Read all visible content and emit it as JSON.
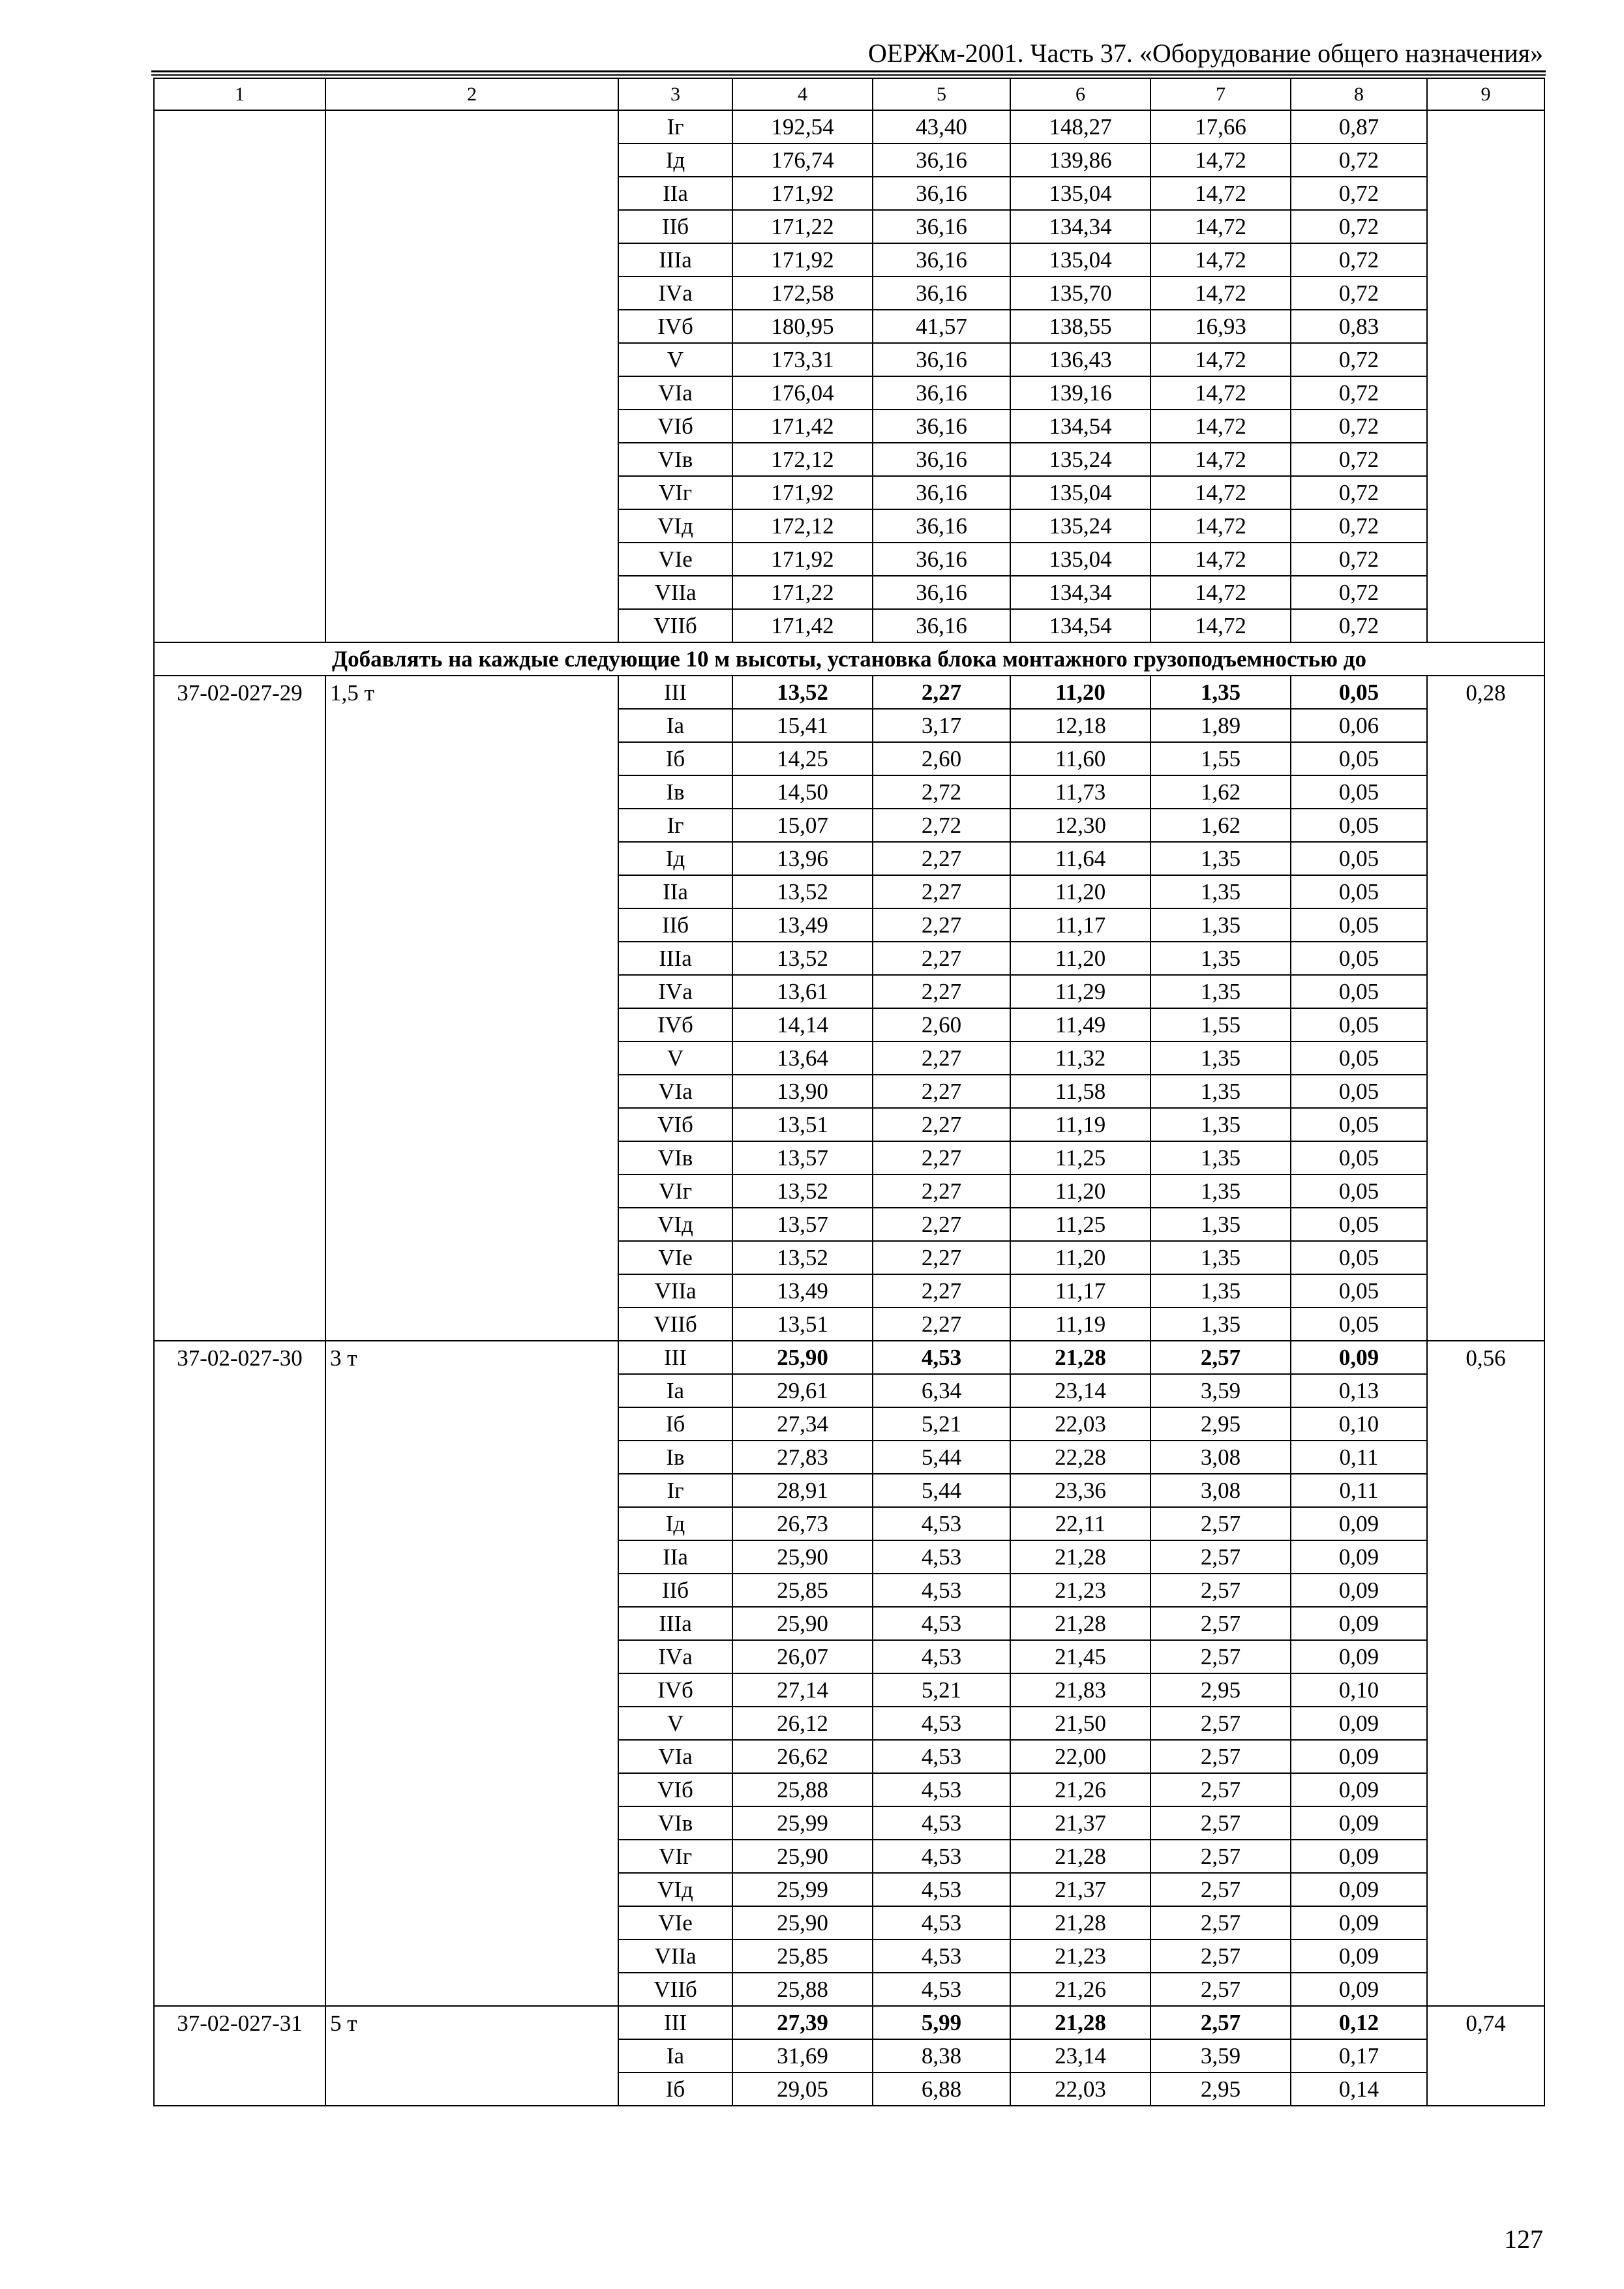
{
  "header": "ОЕРЖм-2001. Часть 37. «Оборудование общего назначения»",
  "page_number": "127",
  "column_numbers": [
    "1",
    "2",
    "3",
    "4",
    "5",
    "6",
    "7",
    "8",
    "9"
  ],
  "section_title": "Добавлять на каждые следующие 10 м высоты, установка блока монтажного грузоподъемностью до",
  "groups": [
    {
      "code": "",
      "capacity": "",
      "col9": "",
      "rows": [
        [
          "Iг",
          "192,54",
          "43,40",
          "148,27",
          "17,66",
          "0,87"
        ],
        [
          "Iд",
          "176,74",
          "36,16",
          "139,86",
          "14,72",
          "0,72"
        ],
        [
          "IIа",
          "171,92",
          "36,16",
          "135,04",
          "14,72",
          "0,72"
        ],
        [
          "IIб",
          "171,22",
          "36,16",
          "134,34",
          "14,72",
          "0,72"
        ],
        [
          "IIIа",
          "171,92",
          "36,16",
          "135,04",
          "14,72",
          "0,72"
        ],
        [
          "IVа",
          "172,58",
          "36,16",
          "135,70",
          "14,72",
          "0,72"
        ],
        [
          "IVб",
          "180,95",
          "41,57",
          "138,55",
          "16,93",
          "0,83"
        ],
        [
          "V",
          "173,31",
          "36,16",
          "136,43",
          "14,72",
          "0,72"
        ],
        [
          "VIа",
          "176,04",
          "36,16",
          "139,16",
          "14,72",
          "0,72"
        ],
        [
          "VIб",
          "171,42",
          "36,16",
          "134,54",
          "14,72",
          "0,72"
        ],
        [
          "VIв",
          "172,12",
          "36,16",
          "135,24",
          "14,72",
          "0,72"
        ],
        [
          "VIг",
          "171,92",
          "36,16",
          "135,04",
          "14,72",
          "0,72"
        ],
        [
          "VIд",
          "172,12",
          "36,16",
          "135,24",
          "14,72",
          "0,72"
        ],
        [
          "VIе",
          "171,92",
          "36,16",
          "135,04",
          "14,72",
          "0,72"
        ],
        [
          "VIIа",
          "171,22",
          "36,16",
          "134,34",
          "14,72",
          "0,72"
        ],
        [
          "VIIб",
          "171,42",
          "36,16",
          "134,54",
          "14,72",
          "0,72"
        ]
      ]
    },
    {
      "section_before": true,
      "code": "37-02-027-29",
      "capacity": "1,5 т",
      "col9": "0,28",
      "rows": [
        [
          "III",
          "13,52",
          "2,27",
          "11,20",
          "1,35",
          "0,05"
        ],
        [
          "Iа",
          "15,41",
          "3,17",
          "12,18",
          "1,89",
          "0,06"
        ],
        [
          "Iб",
          "14,25",
          "2,60",
          "11,60",
          "1,55",
          "0,05"
        ],
        [
          "Iв",
          "14,50",
          "2,72",
          "11,73",
          "1,62",
          "0,05"
        ],
        [
          "Iг",
          "15,07",
          "2,72",
          "12,30",
          "1,62",
          "0,05"
        ],
        [
          "Iд",
          "13,96",
          "2,27",
          "11,64",
          "1,35",
          "0,05"
        ],
        [
          "IIа",
          "13,52",
          "2,27",
          "11,20",
          "1,35",
          "0,05"
        ],
        [
          "IIб",
          "13,49",
          "2,27",
          "11,17",
          "1,35",
          "0,05"
        ],
        [
          "IIIа",
          "13,52",
          "2,27",
          "11,20",
          "1,35",
          "0,05"
        ],
        [
          "IVа",
          "13,61",
          "2,27",
          "11,29",
          "1,35",
          "0,05"
        ],
        [
          "IVб",
          "14,14",
          "2,60",
          "11,49",
          "1,55",
          "0,05"
        ],
        [
          "V",
          "13,64",
          "2,27",
          "11,32",
          "1,35",
          "0,05"
        ],
        [
          "VIа",
          "13,90",
          "2,27",
          "11,58",
          "1,35",
          "0,05"
        ],
        [
          "VIб",
          "13,51",
          "2,27",
          "11,19",
          "1,35",
          "0,05"
        ],
        [
          "VIв",
          "13,57",
          "2,27",
          "11,25",
          "1,35",
          "0,05"
        ],
        [
          "VIг",
          "13,52",
          "2,27",
          "11,20",
          "1,35",
          "0,05"
        ],
        [
          "VIд",
          "13,57",
          "2,27",
          "11,25",
          "1,35",
          "0,05"
        ],
        [
          "VIе",
          "13,52",
          "2,27",
          "11,20",
          "1,35",
          "0,05"
        ],
        [
          "VIIа",
          "13,49",
          "2,27",
          "11,17",
          "1,35",
          "0,05"
        ],
        [
          "VIIб",
          "13,51",
          "2,27",
          "11,19",
          "1,35",
          "0,05"
        ]
      ]
    },
    {
      "code": "37-02-027-30",
      "capacity": "3 т",
      "col9": "0,56",
      "rows": [
        [
          "III",
          "25,90",
          "4,53",
          "21,28",
          "2,57",
          "0,09"
        ],
        [
          "Iа",
          "29,61",
          "6,34",
          "23,14",
          "3,59",
          "0,13"
        ],
        [
          "Iб",
          "27,34",
          "5,21",
          "22,03",
          "2,95",
          "0,10"
        ],
        [
          "Iв",
          "27,83",
          "5,44",
          "22,28",
          "3,08",
          "0,11"
        ],
        [
          "Iг",
          "28,91",
          "5,44",
          "23,36",
          "3,08",
          "0,11"
        ],
        [
          "Iд",
          "26,73",
          "4,53",
          "22,11",
          "2,57",
          "0,09"
        ],
        [
          "IIа",
          "25,90",
          "4,53",
          "21,28",
          "2,57",
          "0,09"
        ],
        [
          "IIб",
          "25,85",
          "4,53",
          "21,23",
          "2,57",
          "0,09"
        ],
        [
          "IIIа",
          "25,90",
          "4,53",
          "21,28",
          "2,57",
          "0,09"
        ],
        [
          "IVа",
          "26,07",
          "4,53",
          "21,45",
          "2,57",
          "0,09"
        ],
        [
          "IVб",
          "27,14",
          "5,21",
          "21,83",
          "2,95",
          "0,10"
        ],
        [
          "V",
          "26,12",
          "4,53",
          "21,50",
          "2,57",
          "0,09"
        ],
        [
          "VIа",
          "26,62",
          "4,53",
          "22,00",
          "2,57",
          "0,09"
        ],
        [
          "VIб",
          "25,88",
          "4,53",
          "21,26",
          "2,57",
          "0,09"
        ],
        [
          "VIв",
          "25,99",
          "4,53",
          "21,37",
          "2,57",
          "0,09"
        ],
        [
          "VIг",
          "25,90",
          "4,53",
          "21,28",
          "2,57",
          "0,09"
        ],
        [
          "VIд",
          "25,99",
          "4,53",
          "21,37",
          "2,57",
          "0,09"
        ],
        [
          "VIе",
          "25,90",
          "4,53",
          "21,28",
          "2,57",
          "0,09"
        ],
        [
          "VIIа",
          "25,85",
          "4,53",
          "21,23",
          "2,57",
          "0,09"
        ],
        [
          "VIIб",
          "25,88",
          "4,53",
          "21,26",
          "2,57",
          "0,09"
        ]
      ]
    },
    {
      "code": "37-02-027-31",
      "capacity": "5 т",
      "col9": "0,74",
      "rows": [
        [
          "III",
          "27,39",
          "5,99",
          "21,28",
          "2,57",
          "0,12"
        ],
        [
          "Iа",
          "31,69",
          "8,38",
          "23,14",
          "3,59",
          "0,17"
        ],
        [
          "Iб",
          "29,05",
          "6,88",
          "22,03",
          "2,95",
          "0,14"
        ]
      ]
    }
  ]
}
